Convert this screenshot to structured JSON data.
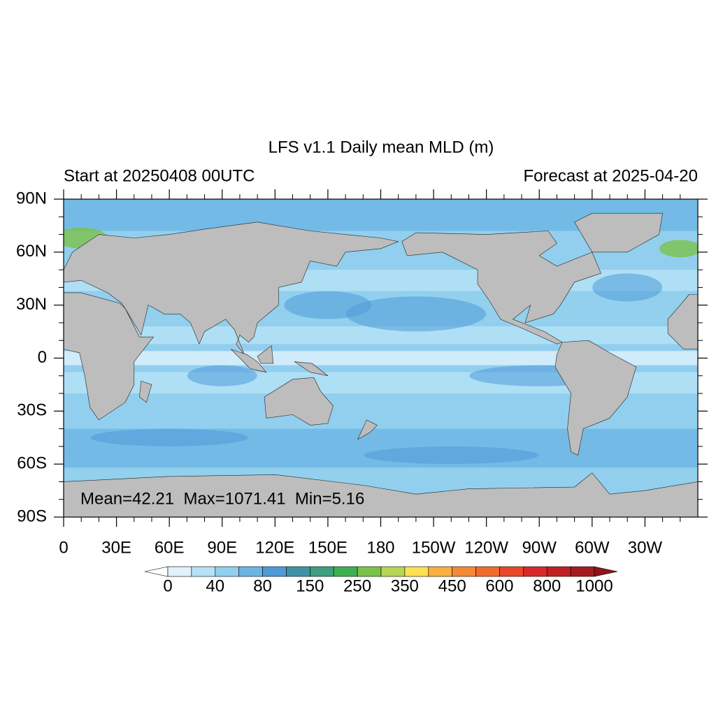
{
  "title": "LFS v1.1 Daily mean MLD (m)",
  "subtitle_left": "Start at 20250408 00UTC",
  "subtitle_right": "Forecast at 2025-04-20",
  "map": {
    "lat_labels": [
      "90N",
      "60N",
      "30N",
      "0",
      "30S",
      "60S",
      "90S"
    ],
    "lon_labels": [
      "0",
      "30E",
      "60E",
      "90E",
      "120E",
      "150E",
      "180",
      "150W",
      "120W",
      "90W",
      "60W",
      "30W"
    ],
    "stats": "Mean=42.21  Max=1071.41  Min=5.16"
  },
  "colorbar": {
    "labels": [
      "0",
      "40",
      "80",
      "150",
      "250",
      "350",
      "450",
      "600",
      "800",
      "1000"
    ],
    "under_color": "#ffffff",
    "over_color": "#8b1519",
    "colors": [
      "#e0f3fc",
      "#b7e2f6",
      "#92cfee",
      "#6cb5e3",
      "#4f9ad8",
      "#3f93a6",
      "#3d9e80",
      "#3eb14e",
      "#7cc24a",
      "#b8d655",
      "#fbe052",
      "#f9b040",
      "#f48a37",
      "#ef6b2d",
      "#e8472a",
      "#d92828",
      "#c01f26",
      "#a51c20"
    ]
  }
}
